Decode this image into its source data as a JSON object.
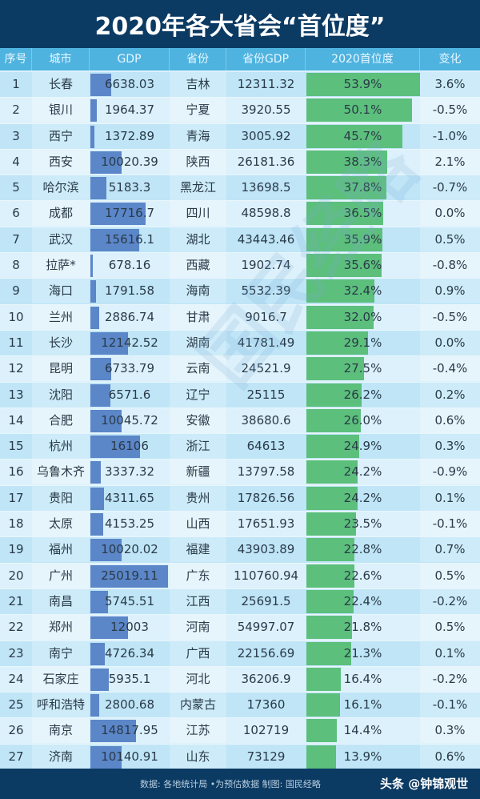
{
  "title": "2020年各大省会“首位度”",
  "headers": [
    "序号",
    "城市",
    "GDP",
    "省份",
    "省份GDP",
    "2020首位度",
    "变化"
  ],
  "footer": {
    "source": "数据:  各地统计局 •为预估数据  制图:  国民经略",
    "watermark": "头条 @钟锦观世"
  },
  "background_watermark": "国民经略",
  "colors": {
    "title_bg": "#0b3a63",
    "header_bg": "#4fb3e0",
    "row_odd": "#bfe5f7",
    "row_even": "#dcf1fb",
    "gdp_bar": "#5b86c8",
    "primacy_bar": "#5cbf7c"
  },
  "rows": [
    {
      "rank": "1",
      "city": "长春",
      "gdp": "6638.03",
      "province": "吉林",
      "province_gdp": "12311.32",
      "primacy": "53.9%",
      "change": "3.6%"
    },
    {
      "rank": "2",
      "city": "银川",
      "gdp": "1964.37",
      "province": "宁夏",
      "province_gdp": "3920.55",
      "primacy": "50.1%",
      "change": "-0.5%"
    },
    {
      "rank": "3",
      "city": "西宁",
      "gdp": "1372.89",
      "province": "青海",
      "province_gdp": "3005.92",
      "primacy": "45.7%",
      "change": "-1.0%"
    },
    {
      "rank": "4",
      "city": "西安",
      "gdp": "10020.39",
      "province": "陕西",
      "province_gdp": "26181.36",
      "primacy": "38.3%",
      "change": "2.1%"
    },
    {
      "rank": "5",
      "city": "哈尔滨",
      "gdp": "5183.3",
      "province": "黑龙江",
      "province_gdp": "13698.5",
      "primacy": "37.8%",
      "change": "-0.7%"
    },
    {
      "rank": "6",
      "city": "成都",
      "gdp": "17716.7",
      "province": "四川",
      "province_gdp": "48598.8",
      "primacy": "36.5%",
      "change": "0.0%"
    },
    {
      "rank": "7",
      "city": "武汉",
      "gdp": "15616.1",
      "province": "湖北",
      "province_gdp": "43443.46",
      "primacy": "35.9%",
      "change": "0.5%"
    },
    {
      "rank": "8",
      "city": "拉萨*",
      "gdp": "678.16",
      "province": "西藏",
      "province_gdp": "1902.74",
      "primacy": "35.6%",
      "change": "-0.8%"
    },
    {
      "rank": "9",
      "city": "海口",
      "gdp": "1791.58",
      "province": "海南",
      "province_gdp": "5532.39",
      "primacy": "32.4%",
      "change": "0.9%"
    },
    {
      "rank": "10",
      "city": "兰州",
      "gdp": "2886.74",
      "province": "甘肃",
      "province_gdp": "9016.7",
      "primacy": "32.0%",
      "change": "-0.5%"
    },
    {
      "rank": "11",
      "city": "长沙",
      "gdp": "12142.52",
      "province": "湖南",
      "province_gdp": "41781.49",
      "primacy": "29.1%",
      "change": "0.0%"
    },
    {
      "rank": "12",
      "city": "昆明",
      "gdp": "6733.79",
      "province": "云南",
      "province_gdp": "24521.9",
      "primacy": "27.5%",
      "change": "-0.4%"
    },
    {
      "rank": "13",
      "city": "沈阳",
      "gdp": "6571.6",
      "province": "辽宁",
      "province_gdp": "25115",
      "primacy": "26.2%",
      "change": "0.2%"
    },
    {
      "rank": "14",
      "city": "合肥",
      "gdp": "10045.72",
      "province": "安徽",
      "province_gdp": "38680.6",
      "primacy": "26.0%",
      "change": "0.6%"
    },
    {
      "rank": "15",
      "city": "杭州",
      "gdp": "16106",
      "province": "浙江",
      "province_gdp": "64613",
      "primacy": "24.9%",
      "change": "0.3%"
    },
    {
      "rank": "16",
      "city": "乌鲁木齐",
      "gdp": "3337.32",
      "province": "新疆",
      "province_gdp": "13797.58",
      "primacy": "24.2%",
      "change": "-0.9%"
    },
    {
      "rank": "17",
      "city": "贵阳",
      "gdp": "4311.65",
      "province": "贵州",
      "province_gdp": "17826.56",
      "primacy": "24.2%",
      "change": "0.1%"
    },
    {
      "rank": "18",
      "city": "太原",
      "gdp": "4153.25",
      "province": "山西",
      "province_gdp": "17651.93",
      "primacy": "23.5%",
      "change": "-0.1%"
    },
    {
      "rank": "19",
      "city": "福州",
      "gdp": "10020.02",
      "province": "福建",
      "province_gdp": "43903.89",
      "primacy": "22.8%",
      "change": "0.7%"
    },
    {
      "rank": "20",
      "city": "广州",
      "gdp": "25019.11",
      "province": "广东",
      "province_gdp": "110760.94",
      "primacy": "22.6%",
      "change": "0.5%"
    },
    {
      "rank": "21",
      "city": "南昌",
      "gdp": "5745.51",
      "province": "江西",
      "province_gdp": "25691.5",
      "primacy": "22.4%",
      "change": "-0.2%"
    },
    {
      "rank": "22",
      "city": "郑州",
      "gdp": "12003",
      "province": "河南",
      "province_gdp": "54997.07",
      "primacy": "21.8%",
      "change": "0.5%"
    },
    {
      "rank": "23",
      "city": "南宁",
      "gdp": "4726.34",
      "province": "广西",
      "province_gdp": "22156.69",
      "primacy": "21.3%",
      "change": "0.1%"
    },
    {
      "rank": "24",
      "city": "石家庄",
      "gdp": "5935.1",
      "province": "河北",
      "province_gdp": "36206.9",
      "primacy": "16.4%",
      "change": "-0.2%"
    },
    {
      "rank": "25",
      "city": "呼和浩特",
      "gdp": "2800.68",
      "province": "内蒙古",
      "province_gdp": "17360",
      "primacy": "16.1%",
      "change": "-0.1%"
    },
    {
      "rank": "26",
      "city": "南京",
      "gdp": "14817.95",
      "province": "江苏",
      "province_gdp": "102719",
      "primacy": "14.4%",
      "change": "0.3%"
    },
    {
      "rank": "27",
      "city": "济南",
      "gdp": "10140.91",
      "province": "山东",
      "province_gdp": "73129",
      "primacy": "13.9%",
      "change": "0.6%"
    }
  ],
  "chart_data": {
    "type": "table",
    "title": "2020年各大省会“首位度”",
    "columns": [
      "序号",
      "城市",
      "GDP",
      "省份",
      "省份GDP",
      "2020首位度",
      "变化"
    ],
    "categories": [
      "长春",
      "银川",
      "西宁",
      "西安",
      "哈尔滨",
      "成都",
      "武汉",
      "拉萨*",
      "海口",
      "兰州",
      "长沙",
      "昆明",
      "沈阳",
      "合肥",
      "杭州",
      "乌鲁木齐",
      "贵阳",
      "太原",
      "福州",
      "广州",
      "南昌",
      "郑州",
      "南宁",
      "石家庄",
      "呼和浩特",
      "南京",
      "济南"
    ],
    "series": [
      {
        "name": "GDP",
        "values": [
          6638.03,
          1964.37,
          1372.89,
          10020.39,
          5183.3,
          17716.7,
          15616.1,
          678.16,
          1791.58,
          2886.74,
          12142.52,
          6733.79,
          6571.6,
          10045.72,
          16106,
          3337.32,
          4311.65,
          4153.25,
          10020.02,
          25019.11,
          5745.51,
          12003,
          4726.34,
          5935.1,
          2800.68,
          14817.95,
          10140.91
        ]
      },
      {
        "name": "省份GDP",
        "values": [
          12311.32,
          3920.55,
          3005.92,
          26181.36,
          13698.5,
          48598.8,
          43443.46,
          1902.74,
          5532.39,
          9016.7,
          41781.49,
          24521.9,
          25115,
          38680.6,
          64613,
          13797.58,
          17826.56,
          17651.93,
          43903.89,
          110760.94,
          25691.5,
          54997.07,
          22156.69,
          36206.9,
          17360,
          102719,
          73129
        ]
      },
      {
        "name": "2020首位度 (%)",
        "values": [
          53.9,
          50.1,
          45.7,
          38.3,
          37.8,
          36.5,
          35.9,
          35.6,
          32.4,
          32.0,
          29.1,
          27.5,
          26.2,
          26.0,
          24.9,
          24.2,
          24.2,
          23.5,
          22.8,
          22.6,
          22.4,
          21.8,
          21.3,
          16.4,
          16.1,
          14.4,
          13.9
        ]
      },
      {
        "name": "变化 (%)",
        "values": [
          3.6,
          -0.5,
          -1.0,
          2.1,
          -0.7,
          0.0,
          0.5,
          -0.8,
          0.9,
          -0.5,
          0.0,
          -0.4,
          0.2,
          0.6,
          0.3,
          -0.9,
          0.1,
          -0.1,
          0.7,
          0.5,
          -0.2,
          0.5,
          0.1,
          -0.2,
          -0.1,
          0.3,
          0.6
        ]
      }
    ],
    "notes": "Data: 各地统计局; * = 预估数据; 制图: 国民经略"
  }
}
